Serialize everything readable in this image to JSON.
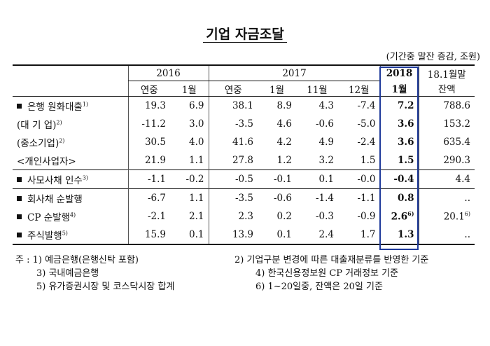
{
  "title": "기업 자금조달",
  "unit": "(기간중 말잔 증감, 조원)",
  "header": {
    "years": [
      {
        "label": "2016",
        "span": 2
      },
      {
        "label": "2017",
        "span": 4
      },
      {
        "label": "2018",
        "span": 1
      },
      {
        "label": "18.1월말",
        "span": 1
      }
    ],
    "columns": [
      "연중",
      "1월",
      "연중",
      "1월",
      "11월",
      "12월",
      "1월",
      "잔액"
    ]
  },
  "table": {
    "rows": [
      {
        "label": "은행 원화대출",
        "note": "1)",
        "bullet": true,
        "cells": [
          "19.3",
          "6.9",
          "38.1",
          "8.9",
          "4.3",
          "-7.4",
          "7.2",
          "788.6"
        ]
      },
      {
        "label": "(대 기 업)",
        "note": "2)",
        "cells": [
          "-11.2",
          "3.0",
          "-3.5",
          "4.6",
          "-0.6",
          "-5.0",
          "3.6",
          "153.2"
        ]
      },
      {
        "label": "(중소기업)",
        "note": "2)",
        "cells": [
          "30.5",
          "4.0",
          "41.6",
          "4.2",
          "4.9",
          "-2.4",
          "3.6",
          "635.4"
        ]
      },
      {
        "label": "<개인사업자>",
        "cells": [
          "21.9",
          "1.1",
          "27.8",
          "1.2",
          "3.2",
          "1.5",
          "1.5",
          "290.3"
        ]
      },
      {
        "label": "사모사채 인수",
        "note": "3)",
        "bullet": true,
        "cells": [
          "-1.1",
          "-0.2",
          "-0.5",
          "-0.1",
          "0.1",
          "-0.0",
          "-0.4",
          "4.4"
        ]
      },
      {
        "label": "회사채 순발행",
        "bullet": true,
        "cells": [
          "-6.7",
          "1.1",
          "-3.5",
          "-0.6",
          "-1.4",
          "-1.1",
          "0.8",
          ".."
        ]
      },
      {
        "label": "CP 순발행",
        "note": "4)",
        "bullet": true,
        "cells": [
          "-2.1",
          "2.1",
          "2.3",
          "0.2",
          "-0.3",
          "-0.9",
          {
            "value": "2.6",
            "note": "6)"
          },
          {
            "value": "20.1",
            "note": "6)"
          }
        ]
      },
      {
        "label": "주식발행",
        "note": "5)",
        "bullet": true,
        "cells": [
          "15.9",
          "0.1",
          "13.9",
          "0.1",
          "2.4",
          "1.7",
          "1.3",
          ".."
        ]
      }
    ]
  },
  "notes": {
    "prefix": "주 :",
    "items": [
      "1) 예금은행(은행신탁 포함)",
      "2) 기업구분 변경에 따른 대출재분류를 반영한 기준",
      "3) 국내예금은행",
      "4) 한국신용정보원 CP 거래정보 기준",
      "5) 유가증권시장 및 코스닥시장 합계",
      "6) 1~20일중, 잔액은 20일 기준"
    ]
  }
}
